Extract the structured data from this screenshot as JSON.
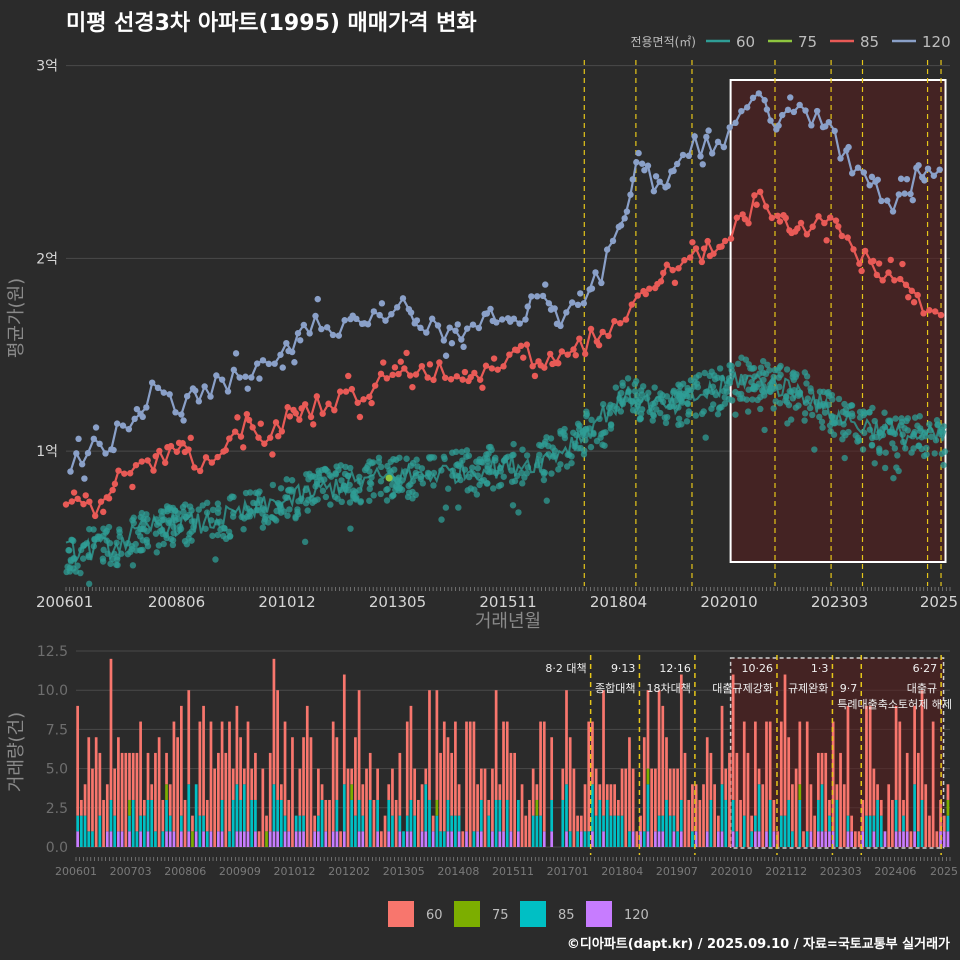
{
  "page": {
    "title": "미평 선경3차 아파트(1995) 매매가격 변화",
    "footer": "©디아파트(dapt.kr) / 2025.09.10 / 자료=국토교통부 실거래가"
  },
  "colors": {
    "background": "#2b2b2b",
    "grid": "#4a4a4a",
    "vline": "#e6c619",
    "highlight_fill": "#5a1e1e",
    "highlight_stroke": "#ffffff",
    "s60": "#2f9e96",
    "s75": "#8ec63f",
    "s85": "#e85a56",
    "s120": "#8aa0c8",
    "bar60": "#f8766d",
    "bar75": "#7cae00",
    "bar85": "#00bfc4",
    "bar120": "#c77cff"
  },
  "chart_data": [
    {
      "type": "line",
      "title": "미평 선경3차 아파트(1995) 매매가격 변화",
      "xlabel": "거래년월",
      "ylabel": "평균가(원)",
      "legend_title": "전용면적(㎡)",
      "legend_position": "top-right",
      "x_tick_labels": [
        "200601",
        "200806",
        "201012",
        "201305",
        "201511",
        "201804",
        "202010",
        "202303",
        "2025"
      ],
      "y_tick_labels": [
        "1억",
        "2억",
        "3억"
      ],
      "y_ticks": [
        1.0,
        2.0,
        3.0
      ],
      "ylim": [
        0.3,
        3.05
      ],
      "xlim": [
        2006.0,
        2025.7
      ],
      "grid": true,
      "highlight_range": [
        2020.9,
        2025.6
      ],
      "event_lines": [
        2017.55,
        2018.7,
        2019.95,
        2021.8,
        2023.05,
        2023.75,
        2025.2,
        2025.5
      ],
      "series": [
        {
          "name": "60",
          "values": [
            [
              2006.0,
              0.48
            ],
            [
              2007.0,
              0.5
            ],
            [
              2008.0,
              0.62
            ],
            [
              2009.0,
              0.62
            ],
            [
              2010.0,
              0.68
            ],
            [
              2011.0,
              0.75
            ],
            [
              2012.0,
              0.82
            ],
            [
              2013.0,
              0.86
            ],
            [
              2014.0,
              0.88
            ],
            [
              2015.0,
              0.9
            ],
            [
              2016.0,
              0.93
            ],
            [
              2016.6,
              0.95
            ],
            [
              2017.0,
              1.0
            ],
            [
              2017.5,
              1.08
            ],
            [
              2018.0,
              1.2
            ],
            [
              2018.5,
              1.28
            ],
            [
              2019.0,
              1.25
            ],
            [
              2019.5,
              1.22
            ],
            [
              2020.0,
              1.28
            ],
            [
              2020.5,
              1.32
            ],
            [
              2021.0,
              1.38
            ],
            [
              2021.5,
              1.36
            ],
            [
              2022.0,
              1.33
            ],
            [
              2022.5,
              1.3
            ],
            [
              2023.0,
              1.2
            ],
            [
              2023.5,
              1.15
            ],
            [
              2024.0,
              1.12
            ],
            [
              2024.5,
              1.08
            ],
            [
              2025.0,
              1.08
            ],
            [
              2025.6,
              1.07
            ]
          ]
        },
        {
          "name": "75",
          "values": [
            [
              2013.2,
              0.86
            ]
          ]
        },
        {
          "name": "85",
          "values": [
            [
              2006.0,
              0.72
            ],
            [
              2006.5,
              0.68
            ],
            [
              2007.0,
              0.82
            ],
            [
              2007.5,
              0.9
            ],
            [
              2008.0,
              0.95
            ],
            [
              2008.5,
              1.0
            ],
            [
              2009.0,
              0.95
            ],
            [
              2009.5,
              1.05
            ],
            [
              2010.0,
              1.15
            ],
            [
              2010.5,
              1.08
            ],
            [
              2011.0,
              1.18
            ],
            [
              2011.5,
              1.22
            ],
            [
              2012.0,
              1.25
            ],
            [
              2012.5,
              1.3
            ],
            [
              2013.0,
              1.35
            ],
            [
              2013.5,
              1.38
            ],
            [
              2014.0,
              1.4
            ],
            [
              2014.5,
              1.42
            ],
            [
              2015.0,
              1.38
            ],
            [
              2015.5,
              1.45
            ],
            [
              2016.0,
              1.52
            ],
            [
              2016.5,
              1.48
            ],
            [
              2017.0,
              1.5
            ],
            [
              2017.5,
              1.55
            ],
            [
              2018.0,
              1.62
            ],
            [
              2018.5,
              1.7
            ],
            [
              2019.0,
              1.85
            ],
            [
              2019.5,
              1.95
            ],
            [
              2020.0,
              2.0
            ],
            [
              2020.5,
              2.05
            ],
            [
              2021.0,
              2.18
            ],
            [
              2021.5,
              2.32
            ],
            [
              2022.0,
              2.18
            ],
            [
              2022.5,
              2.12
            ],
            [
              2023.0,
              2.2
            ],
            [
              2023.5,
              2.05
            ],
            [
              2024.0,
              1.95
            ],
            [
              2024.5,
              1.85
            ],
            [
              2025.0,
              1.78
            ],
            [
              2025.6,
              1.72
            ]
          ]
        },
        {
          "name": "120",
          "values": [
            [
              2006.1,
              0.95
            ],
            [
              2007.0,
              1.05
            ],
            [
              2008.0,
              1.32
            ],
            [
              2008.5,
              1.22
            ],
            [
              2009.0,
              1.3
            ],
            [
              2009.5,
              1.35
            ],
            [
              2010.0,
              1.38
            ],
            [
              2010.5,
              1.45
            ],
            [
              2011.0,
              1.55
            ],
            [
              2011.5,
              1.65
            ],
            [
              2012.0,
              1.58
            ],
            [
              2012.5,
              1.68
            ],
            [
              2013.0,
              1.72
            ],
            [
              2013.5,
              1.75
            ],
            [
              2014.0,
              1.65
            ],
            [
              2014.5,
              1.62
            ],
            [
              2015.0,
              1.58
            ],
            [
              2015.5,
              1.72
            ],
            [
              2016.0,
              1.68
            ],
            [
              2016.5,
              1.78
            ],
            [
              2017.0,
              1.7
            ],
            [
              2017.5,
              1.8
            ],
            [
              2018.0,
              1.95
            ],
            [
              2018.5,
              2.25
            ],
            [
              2018.8,
              2.55
            ],
            [
              2019.2,
              2.35
            ],
            [
              2019.7,
              2.52
            ],
            [
              2020.0,
              2.6
            ],
            [
              2020.5,
              2.55
            ],
            [
              2021.0,
              2.72
            ],
            [
              2021.4,
              2.85
            ],
            [
              2021.8,
              2.72
            ],
            [
              2022.3,
              2.82
            ],
            [
              2023.0,
              2.65
            ],
            [
              2023.5,
              2.48
            ],
            [
              2024.0,
              2.35
            ],
            [
              2024.5,
              2.28
            ],
            [
              2025.0,
              2.45
            ],
            [
              2025.5,
              2.5
            ]
          ]
        }
      ]
    },
    {
      "type": "bar",
      "ylabel": "거래량(건)",
      "x_tick_labels": [
        "200601",
        "200703",
        "200806",
        "200909",
        "201012",
        "201202",
        "201305",
        "201408",
        "201511",
        "201701",
        "201804",
        "201907",
        "202010",
        "202112",
        "202303",
        "202406",
        "2025"
      ],
      "y_tick_labels": [
        "0.0",
        "2.5",
        "5.0",
        "7.5",
        "10.0",
        "12.5"
      ],
      "y_ticks": [
        0,
        2.5,
        5,
        7.5,
        10,
        12.5
      ],
      "ylim": [
        0,
        12.5
      ],
      "xlim": [
        2006.0,
        2025.7
      ],
      "legend_position": "bottom",
      "legend": [
        "60",
        "75",
        "85",
        "120"
      ],
      "highlight_range": [
        2020.8,
        2025.6
      ],
      "event_lines": [
        {
          "x": 2017.6,
          "label": "8·2 대책",
          "label2": ""
        },
        {
          "x": 2018.7,
          "label": "9·13",
          "label2": "종합대책"
        },
        {
          "x": 2019.95,
          "label": "12·16",
          "label2": "18차대책"
        },
        {
          "x": 2021.8,
          "label": "10·26",
          "label2": "대출규제강화"
        },
        {
          "x": 2023.05,
          "label": "1·3",
          "label2": "규제완화"
        },
        {
          "x": 2023.7,
          "label": "",
          "label2": "9·7"
        },
        {
          "x": 2025.5,
          "label": "6·27",
          "label2": "대출규"
        }
      ],
      "annotation_line3": "특례대출축소",
      "annotation_line3b": "토허제 해제",
      "note": "monthly transaction counts by area type"
    }
  ]
}
